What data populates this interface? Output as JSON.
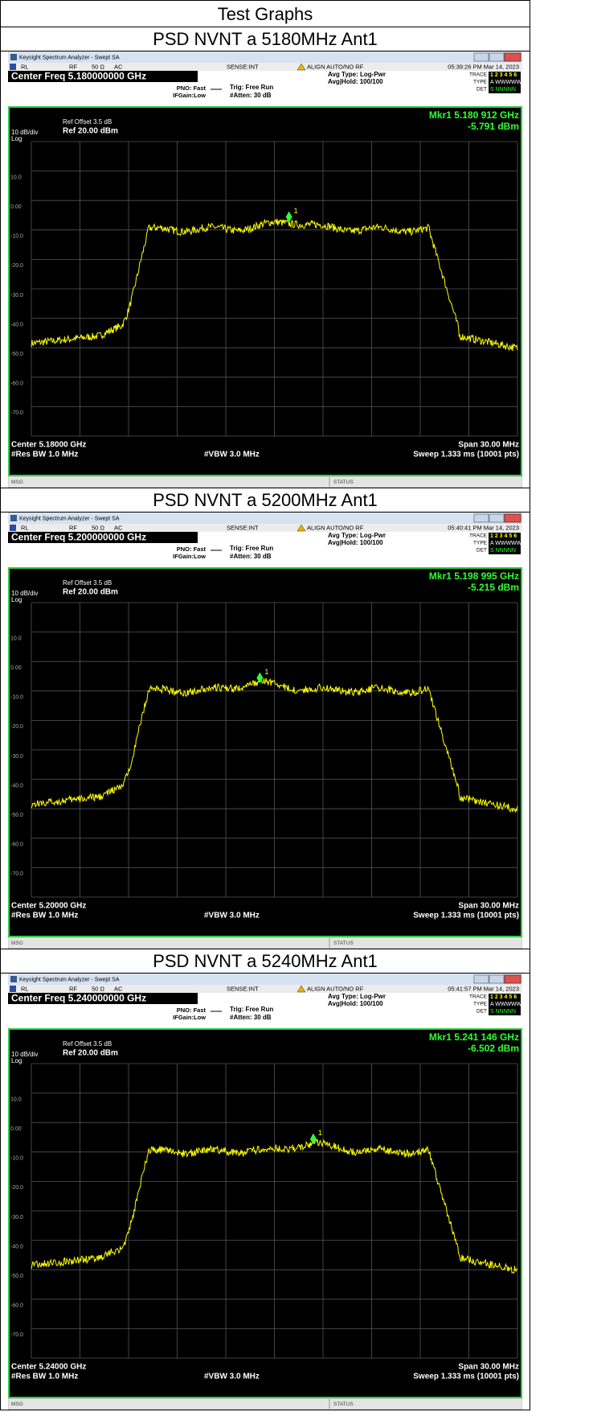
{
  "header": {
    "title": "Test Graphs"
  },
  "sections": [
    {
      "caption": "PSD NVNT a 5180MHz Ant1",
      "screen": {
        "app_title": "Keysight Spectrum Analyzer - Swept SA",
        "rl": "RL",
        "rf": "RF",
        "impedance": "50 Ω",
        "coupling": "AC",
        "sense": "SENSE:INT",
        "align": "ALIGN AUTO/NO RF",
        "timestamp": "05:39:26 PM Mar 14, 2023",
        "center_freq": "Center Freq 5.180000000 GHz",
        "pno": "PNO: Fast",
        "ifgain": "IFGain:Low",
        "trig": "Trig: Free Run",
        "atten": "#Atten: 30 dB",
        "avg_type": "Avg Type: Log-Pwr",
        "avg_hold": "Avg|Hold: 100/100",
        "trace_label": "TRACE",
        "trace_value": "1 2 3 4 5 6",
        "type_label": "TYPE",
        "type_value": "A WWWWW",
        "det_label": "DET",
        "det_value": "S NNNNN",
        "ref_offset": "Ref Offset 3.5 dB",
        "ref_level": "Ref 20.00 dBm",
        "scale": "10 dB/div",
        "log": "Log",
        "marker_freq": "Mkr1 5.180 912 GHz",
        "marker_level": "-5.791 dBm",
        "marker_num": "1",
        "y_labels": [
          "10.0",
          "0.00",
          "-10.0",
          "-20.0",
          "-30.0",
          "-40.0",
          "-50.0",
          "-60.0",
          "-70.0"
        ],
        "center": "Center 5.18000 GHz",
        "res_bw": "#Res BW 1.0 MHz",
        "vbw": "#VBW 3.0 MHz",
        "span": "Span 30.00 MHz",
        "sweep": "Sweep 1.333 ms (10001 pts)",
        "msg": "MSG",
        "status": "STATUS"
      }
    },
    {
      "caption": "PSD NVNT a 5200MHz Ant1",
      "screen": {
        "app_title": "Keysight Spectrum Analyzer - Swept SA",
        "rl": "RL",
        "rf": "RF",
        "impedance": "50 Ω",
        "coupling": "AC",
        "sense": "SENSE:INT",
        "align": "ALIGN AUTO/NO RF",
        "timestamp": "05:40:41 PM Mar 14, 2023",
        "center_freq": "Center Freq 5.200000000 GHz",
        "pno": "PNO: Fast",
        "ifgain": "IFGain:Low",
        "trig": "Trig: Free Run",
        "atten": "#Atten: 30 dB",
        "avg_type": "Avg Type: Log-Pwr",
        "avg_hold": "Avg|Hold: 100/100",
        "trace_label": "TRACE",
        "trace_value": "1 2 3 4 5 6",
        "type_label": "TYPE",
        "type_value": "A WWWWW",
        "det_label": "DET",
        "det_value": "S NNNNN",
        "ref_offset": "Ref Offset 3.5 dB",
        "ref_level": "Ref 20.00 dBm",
        "scale": "10 dB/div",
        "log": "Log",
        "marker_freq": "Mkr1 5.198 995 GHz",
        "marker_level": "-5.215 dBm",
        "marker_num": "1",
        "y_labels": [
          "10.0",
          "0.00",
          "-10.0",
          "-20.0",
          "-30.0",
          "-40.0",
          "-50.0",
          "-60.0",
          "-70.0"
        ],
        "center": "Center 5.20000 GHz",
        "res_bw": "#Res BW 1.0 MHz",
        "vbw": "#VBW 3.0 MHz",
        "span": "Span 30.00 MHz",
        "sweep": "Sweep 1.333 ms (10001 pts)",
        "msg": "MSG",
        "status": "STATUS"
      }
    },
    {
      "caption": "PSD NVNT a 5240MHz Ant1",
      "screen": {
        "app_title": "Keysight Spectrum Analyzer - Swept SA",
        "rl": "RL",
        "rf": "RF",
        "impedance": "50 Ω",
        "coupling": "AC",
        "sense": "SENSE:INT",
        "align": "ALIGN AUTO/NO RF",
        "timestamp": "05:41:57 PM Mar 14, 2023",
        "center_freq": "Center Freq 5.240000000 GHz",
        "pno": "PNO: Fast",
        "ifgain": "IFGain:Low",
        "trig": "Trig: Free Run",
        "atten": "#Atten: 30 dB",
        "avg_type": "Avg Type: Log-Pwr",
        "avg_hold": "Avg|Hold: 100/100",
        "trace_label": "TRACE",
        "trace_value": "1 2 3 4 5 6",
        "type_label": "TYPE",
        "type_value": "A WWWWW",
        "det_label": "DET",
        "det_value": "S NNNNN",
        "ref_offset": "Ref Offset 3.5 dB",
        "ref_level": "Ref 20.00 dBm",
        "scale": "10 dB/div",
        "log": "Log",
        "marker_freq": "Mkr1 5.241 146 GHz",
        "marker_level": "-6.502 dBm",
        "marker_num": "1",
        "y_labels": [
          "10.0",
          "0.00",
          "-10.0",
          "-20.0",
          "-30.0",
          "-40.0",
          "-50.0",
          "-60.0",
          "-70.0"
        ],
        "center": "Center 5.24000 GHz",
        "res_bw": "#Res BW 1.0 MHz",
        "vbw": "#VBW 3.0 MHz",
        "span": "Span 30.00 MHz",
        "sweep": "Sweep 1.333 ms (10001 pts)",
        "msg": "MSG",
        "status": "STATUS"
      }
    }
  ]
}
